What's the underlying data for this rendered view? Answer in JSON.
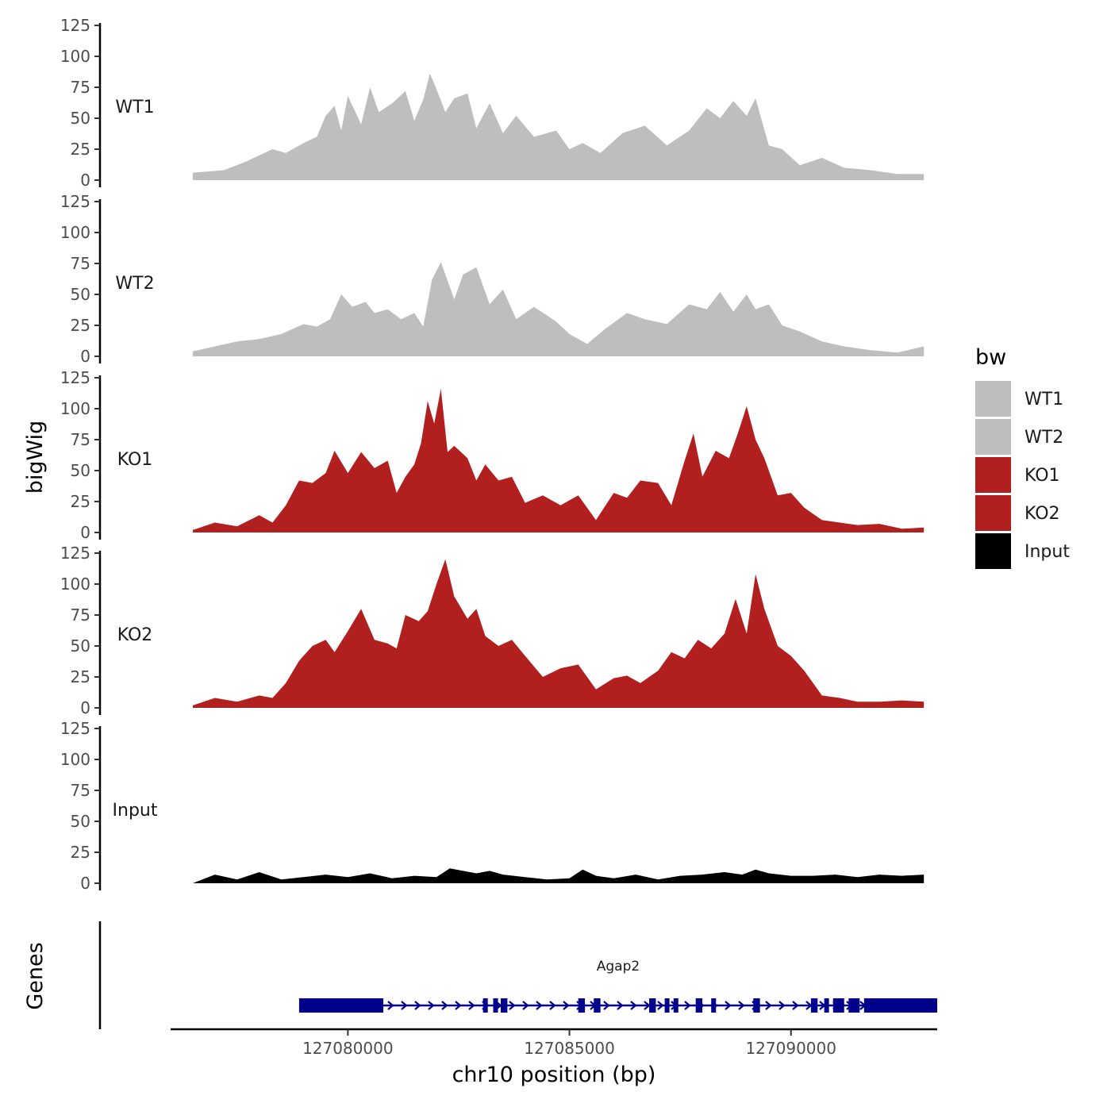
{
  "chart_data": {
    "type": "area",
    "title": "",
    "xlabel": "chr10 position (bp)",
    "ylabel": "bigWig",
    "genes_ylabel": "Genes",
    "xlim": [
      127076000,
      127093300
    ],
    "ylim": [
      0,
      125
    ],
    "yticks": [
      0,
      25,
      50,
      75,
      100,
      125
    ],
    "xticks": [
      127080000,
      127085000,
      127090000
    ],
    "xtick_labels": [
      "127080000",
      "127085000",
      "127090000"
    ],
    "legend": {
      "title": "bw",
      "position": "right",
      "entries": [
        {
          "label": "WT1",
          "color": "#bebebe"
        },
        {
          "label": "WT2",
          "color": "#bebebe"
        },
        {
          "label": "KO1",
          "color": "#b21f1f"
        },
        {
          "label": "KO2",
          "color": "#b21f1f"
        },
        {
          "label": "Input",
          "color": "#000000"
        }
      ]
    },
    "series": [
      {
        "name": "WT1",
        "color": "#bebebe",
        "x": [
          127076500,
          127077200,
          127077700,
          127078300,
          127078600,
          127079000,
          127079300,
          127079500,
          127079700,
          127079850,
          127080000,
          127080300,
          127080500,
          127080700,
          127081000,
          127081300,
          127081500,
          127081700,
          127081850,
          127081950,
          127082200,
          127082400,
          127082700,
          127082900,
          127083200,
          127083500,
          127083800,
          127084200,
          127084700,
          127085000,
          127085300,
          127085700,
          127086200,
          127086700,
          127087200,
          127087700,
          127088100,
          127088400,
          127088700,
          127089000,
          127089200,
          127089500,
          127089800,
          127090200,
          127090700,
          127091200,
          127091800,
          127092400,
          127093000
        ],
        "values": [
          6,
          8,
          15,
          25,
          22,
          30,
          35,
          52,
          60,
          40,
          68,
          45,
          75,
          55,
          62,
          72,
          48,
          65,
          86,
          78,
          55,
          66,
          70,
          42,
          62,
          38,
          52,
          35,
          40,
          25,
          30,
          22,
          38,
          44,
          28,
          40,
          58,
          50,
          64,
          52,
          66,
          28,
          25,
          12,
          18,
          10,
          8,
          5,
          5
        ]
      },
      {
        "name": "WT2",
        "color": "#bebebe",
        "x": [
          127076500,
          127077000,
          127077500,
          127078000,
          127078500,
          127079000,
          127079300,
          127079600,
          127079850,
          127080100,
          127080400,
          127080600,
          127080900,
          127081200,
          127081500,
          127081700,
          127081900,
          127082100,
          127082400,
          127082600,
          127082900,
          127083200,
          127083500,
          127083800,
          127084200,
          127084700,
          127085000,
          127085400,
          127085800,
          127086300,
          127086700,
          127087200,
          127087700,
          127088100,
          127088400,
          127088700,
          127089000,
          127089200,
          127089500,
          127089800,
          127090200,
          127090700,
          127091200,
          127091800,
          127092400,
          127093000
        ],
        "values": [
          4,
          8,
          12,
          14,
          18,
          26,
          24,
          30,
          50,
          40,
          44,
          35,
          38,
          30,
          35,
          24,
          62,
          76,
          46,
          66,
          72,
          42,
          54,
          30,
          40,
          28,
          18,
          10,
          22,
          35,
          30,
          26,
          42,
          38,
          52,
          36,
          50,
          38,
          42,
          25,
          20,
          12,
          8,
          5,
          3,
          8
        ]
      },
      {
        "name": "KO1",
        "color": "#b21f1f",
        "x": [
          127076500,
          127077000,
          127077500,
          127078000,
          127078300,
          127078600,
          127078900,
          127079200,
          127079500,
          127079700,
          127080000,
          127080300,
          127080600,
          127080900,
          127081100,
          127081300,
          127081500,
          127081650,
          127081800,
          127081950,
          127082100,
          127082250,
          127082400,
          127082700,
          127082900,
          127083100,
          127083400,
          127083700,
          127084000,
          127084400,
          127084800,
          127085200,
          127085600,
          127086000,
          127086300,
          127086600,
          127087000,
          127087300,
          127087600,
          127087800,
          127088000,
          127088300,
          127088600,
          127088800,
          127089000,
          127089200,
          127089400,
          127089700,
          127090000,
          127090300,
          127090700,
          127091100,
          127091500,
          127092000,
          127092500,
          127093000
        ],
        "values": [
          2,
          8,
          5,
          14,
          8,
          22,
          42,
          40,
          48,
          66,
          48,
          65,
          52,
          58,
          32,
          45,
          55,
          72,
          106,
          88,
          116,
          65,
          70,
          60,
          42,
          55,
          42,
          45,
          24,
          30,
          22,
          30,
          10,
          32,
          28,
          42,
          40,
          22,
          58,
          80,
          45,
          66,
          60,
          80,
          102,
          75,
          60,
          30,
          32,
          20,
          10,
          8,
          6,
          7,
          3,
          4
        ]
      },
      {
        "name": "KO2",
        "color": "#b21f1f",
        "x": [
          127076500,
          127077000,
          127077500,
          127078000,
          127078300,
          127078600,
          127078900,
          127079200,
          127079500,
          127079700,
          127080000,
          127080300,
          127080600,
          127080900,
          127081100,
          127081300,
          127081600,
          127081800,
          127082000,
          127082200,
          127082400,
          127082700,
          127082900,
          127083100,
          127083400,
          127083700,
          127084000,
          127084400,
          127084800,
          127085200,
          127085600,
          127086000,
          127086300,
          127086600,
          127087000,
          127087300,
          127087600,
          127087900,
          127088200,
          127088500,
          127088750,
          127089000,
          127089200,
          127089400,
          127089700,
          127090000,
          127090300,
          127090700,
          127091100,
          127091500,
          127092000,
          127092500,
          127093000
        ],
        "values": [
          2,
          8,
          5,
          10,
          8,
          20,
          38,
          50,
          55,
          45,
          62,
          80,
          55,
          52,
          48,
          75,
          70,
          78,
          100,
          120,
          90,
          72,
          80,
          58,
          50,
          55,
          42,
          25,
          32,
          35,
          15,
          24,
          26,
          20,
          30,
          45,
          40,
          55,
          48,
          60,
          88,
          60,
          108,
          80,
          50,
          42,
          30,
          10,
          8,
          5,
          5,
          6,
          5
        ]
      },
      {
        "name": "Input",
        "color": "#000000",
        "x": [
          127076500,
          127077000,
          127077500,
          127078000,
          127078500,
          127079000,
          127079500,
          127080000,
          127080500,
          127081000,
          127081500,
          127082000,
          127082300,
          127082600,
          127082900,
          127083200,
          127083500,
          127084000,
          127084500,
          127085000,
          127085300,
          127085600,
          127086000,
          127086500,
          127087000,
          127087500,
          127088000,
          127088500,
          127088900,
          127089200,
          127089500,
          127090000,
          127090500,
          127091000,
          127091500,
          127092000,
          127092500,
          127093000
        ],
        "values": [
          0,
          7,
          3,
          9,
          3,
          5,
          7,
          5,
          8,
          4,
          6,
          5,
          12,
          10,
          8,
          10,
          7,
          5,
          3,
          4,
          11,
          6,
          4,
          7,
          3,
          6,
          7,
          9,
          7,
          11,
          8,
          6,
          6,
          7,
          5,
          7,
          6,
          7
        ]
      }
    ],
    "genes": [
      {
        "name": "Agap2",
        "strand": "+",
        "color": "#00008b",
        "start": 127078900,
        "end": 127093300,
        "exons": [
          [
            127078900,
            127080800
          ],
          [
            127083050,
            127083150
          ],
          [
            127083280,
            127083350
          ],
          [
            127083450,
            127083600
          ],
          [
            127085200,
            127085350
          ],
          [
            127085550,
            127085700
          ],
          [
            127086800,
            127086950
          ],
          [
            127087150,
            127087250
          ],
          [
            127087350,
            127087450
          ],
          [
            127087850,
            127088000
          ],
          [
            127088200,
            127088280
          ],
          [
            127089150,
            127089300
          ],
          [
            127090450,
            127090600
          ],
          [
            127090750,
            127090850
          ],
          [
            127090950,
            127091200
          ],
          [
            127091300,
            127091550
          ],
          [
            127091650,
            127091700
          ],
          [
            127091750,
            127093300
          ]
        ]
      }
    ]
  }
}
